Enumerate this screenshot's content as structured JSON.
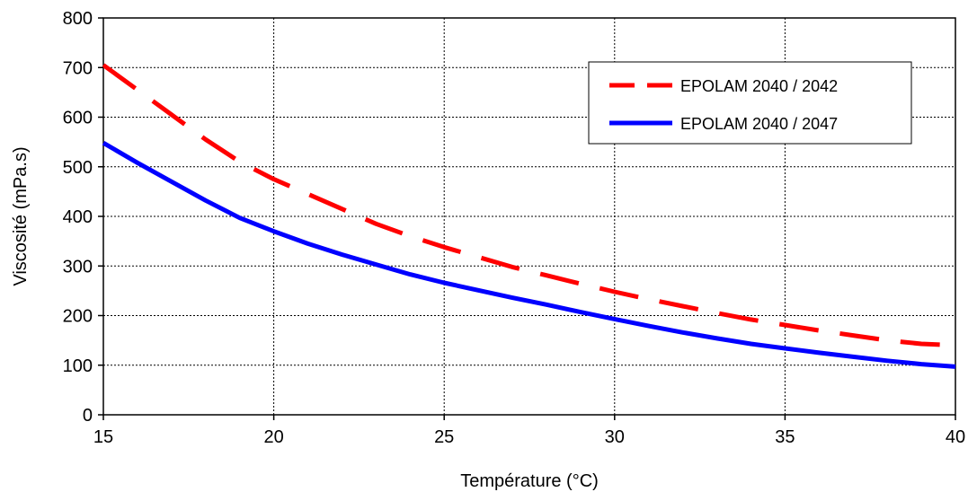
{
  "chart_data": {
    "type": "line",
    "title": "",
    "xlabel": "Température (°C)",
    "ylabel": "Viscosité (mPa.s)",
    "xlim": [
      15,
      40
    ],
    "ylim": [
      0,
      800
    ],
    "xticks": [
      15,
      20,
      25,
      30,
      35,
      40
    ],
    "yticks": [
      0,
      100,
      200,
      300,
      400,
      500,
      600,
      700,
      800
    ],
    "grid": true,
    "legend_position": "top-right",
    "series": [
      {
        "name": "EPOLAM 2040 / 2042",
        "color": "#ff0000",
        "style": "dashed",
        "x": [
          15,
          16,
          17,
          18,
          19,
          20,
          21,
          22,
          23,
          24,
          25,
          26,
          27,
          28,
          29,
          30,
          31,
          32,
          33,
          34,
          35,
          36,
          37,
          38,
          39,
          40
        ],
        "y": [
          705,
          655,
          605,
          555,
          510,
          475,
          445,
          415,
          385,
          360,
          338,
          318,
          298,
          281,
          264,
          248,
          233,
          219,
          205,
          192,
          181,
          170,
          160,
          150,
          143,
          140
        ]
      },
      {
        "name": "EPOLAM 2040 / 2047",
        "color": "#0000ff",
        "style": "solid",
        "x": [
          15,
          16,
          17,
          18,
          19,
          20,
          21,
          22,
          23,
          24,
          25,
          26,
          27,
          28,
          29,
          30,
          31,
          32,
          33,
          34,
          35,
          36,
          37,
          38,
          39,
          40
        ],
        "y": [
          548,
          508,
          470,
          432,
          397,
          370,
          345,
          323,
          303,
          283,
          266,
          251,
          236,
          222,
          207,
          193,
          179,
          166,
          154,
          143,
          134,
          125,
          117,
          109,
          102,
          97
        ]
      }
    ]
  }
}
